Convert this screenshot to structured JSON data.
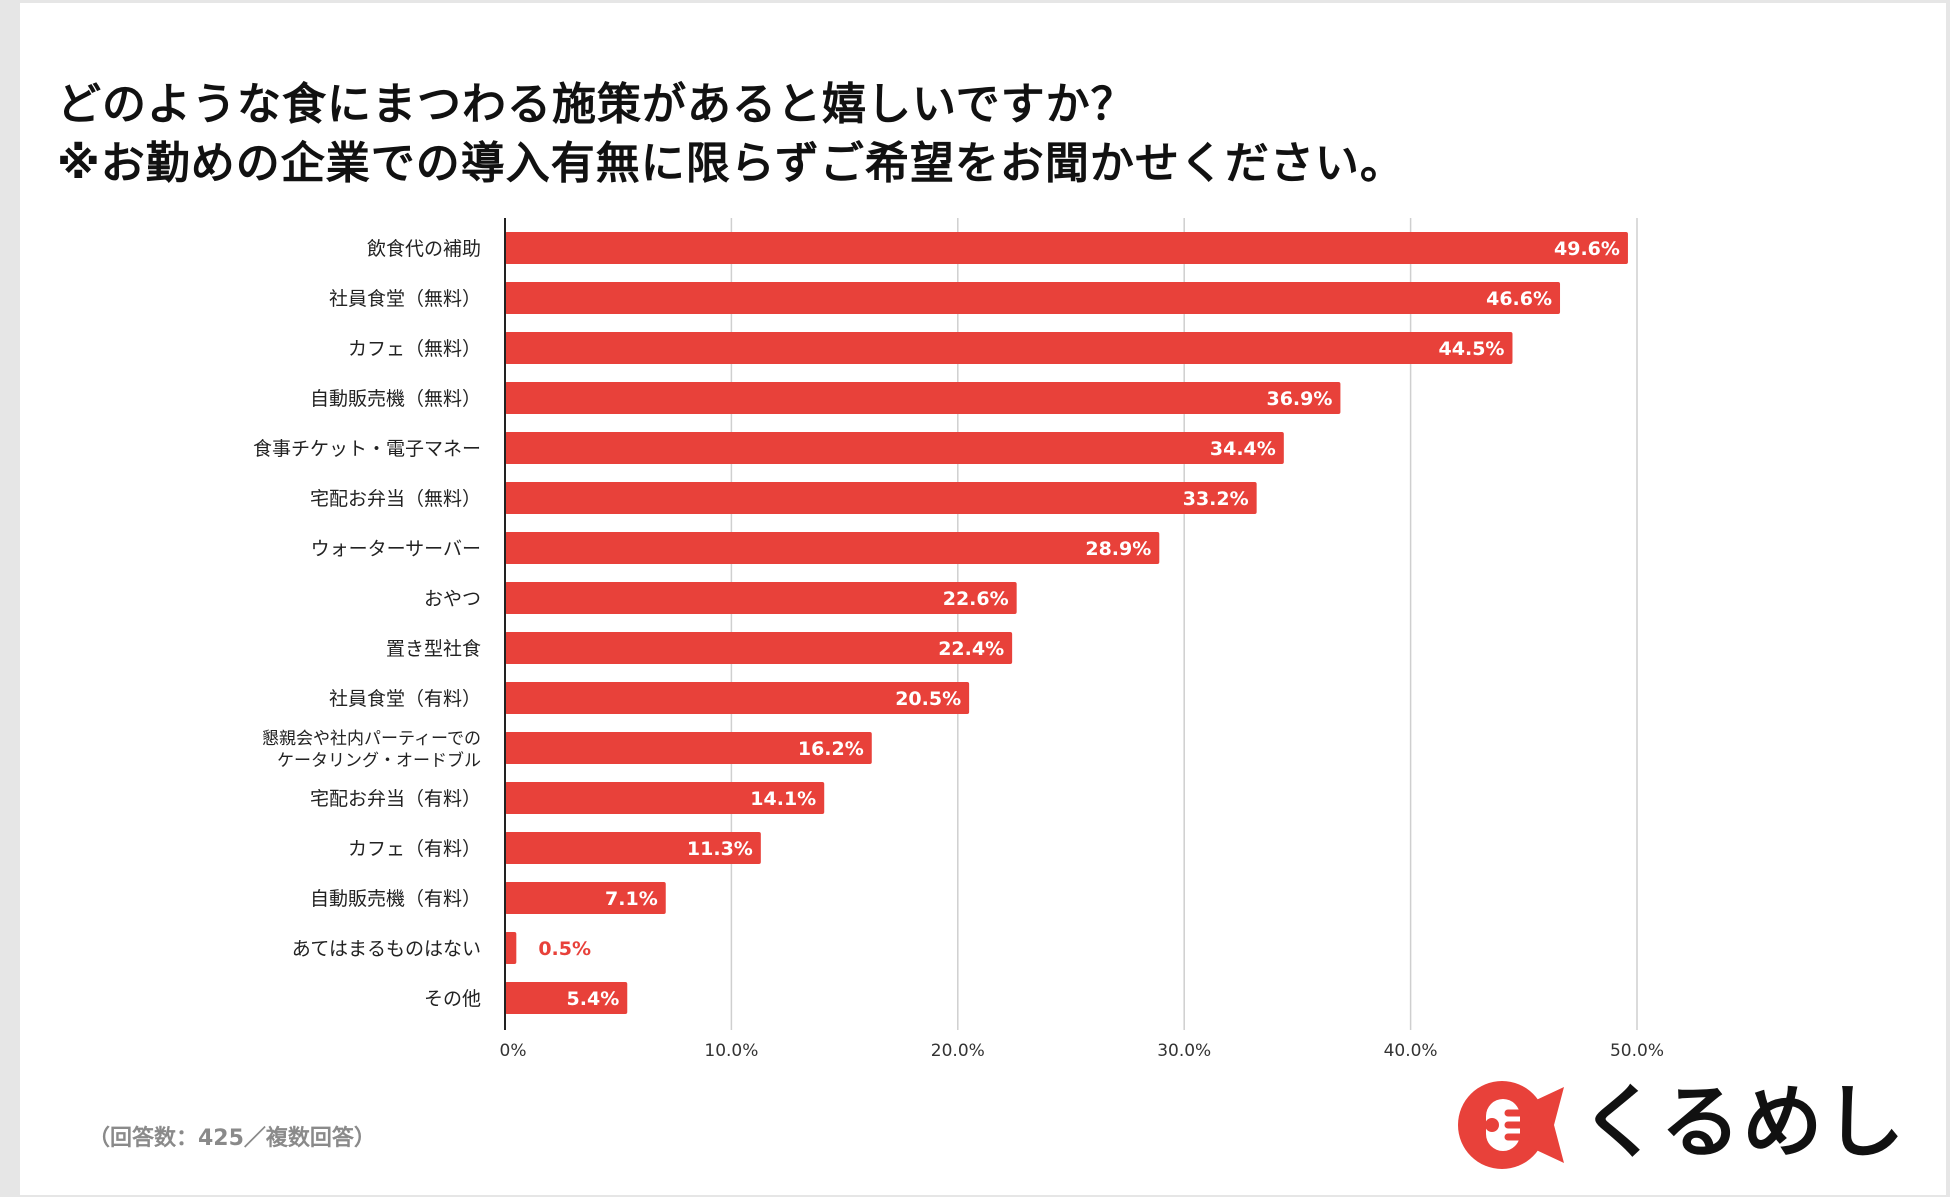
{
  "title": {
    "line1": "どのような食にまつわる施策があると嬉しいですか？",
    "line2": "※お勤めの企業での導入有無に限らずご希望をお聞かせください。"
  },
  "footnote": "（回答数：425／複数回答）",
  "logo": {
    "text": "くるめし"
  },
  "colors": {
    "bar": "#e8413a",
    "grid": "#cfcfcf",
    "axis": "#222222",
    "value_inside": "#ffffff",
    "value_outside": "#e8413a"
  },
  "chart_data": {
    "type": "bar",
    "orientation": "horizontal",
    "title": "どのような食にまつわる施策があると嬉しいですか？ ※お勤めの企業での導入有無に限らずご希望をお聞かせください。",
    "xlabel": "",
    "ylabel": "",
    "xlim": [
      0,
      50
    ],
    "grid": true,
    "ticks": [
      "0%",
      "10.0%",
      "20.0%",
      "30.0%",
      "40.0%",
      "50.0%"
    ],
    "categories": [
      "飲食代の補助",
      "社員食堂（無料）",
      "カフェ（無料）",
      "自動販売機（無料）",
      "食事チケット・電子マネー",
      "宅配お弁当（無料）",
      "ウォーターサーバー",
      "おやつ",
      "置き型社食",
      "社員食堂（有料）",
      "懇親会や社内パーティーでのケータリング・オードブル",
      "宅配お弁当（有料）",
      "カフェ（有料）",
      "自動販売機（有料）",
      "あてはまるものはない",
      "その他"
    ],
    "category_lines": [
      [
        "飲食代の補助"
      ],
      [
        "社員食堂（無料）"
      ],
      [
        "カフェ（無料）"
      ],
      [
        "自動販売機（無料）"
      ],
      [
        "食事チケット・電子マネー"
      ],
      [
        "宅配お弁当（無料）"
      ],
      [
        "ウォーターサーバー"
      ],
      [
        "おやつ"
      ],
      [
        "置き型社食"
      ],
      [
        "社員食堂（有料）"
      ],
      [
        "懇親会や社内パーティーでの",
        "ケータリング・オードブル"
      ],
      [
        "宅配お弁当（有料）"
      ],
      [
        "カフェ（有料）"
      ],
      [
        "自動販売機（有料）"
      ],
      [
        "あてはまるものはない"
      ],
      [
        "その他"
      ]
    ],
    "values": [
      49.6,
      46.6,
      44.5,
      36.9,
      34.4,
      33.2,
      28.9,
      22.6,
      22.4,
      20.5,
      16.2,
      14.1,
      11.3,
      7.1,
      0.5,
      5.4
    ],
    "value_labels": [
      "49.6%",
      "46.6%",
      "44.5%",
      "36.9%",
      "34.4%",
      "33.2%",
      "28.9%",
      "22.6%",
      "22.4%",
      "20.5%",
      "16.2%",
      "14.1%",
      "11.3%",
      "7.1%",
      "0.5%",
      "5.4%"
    ]
  }
}
